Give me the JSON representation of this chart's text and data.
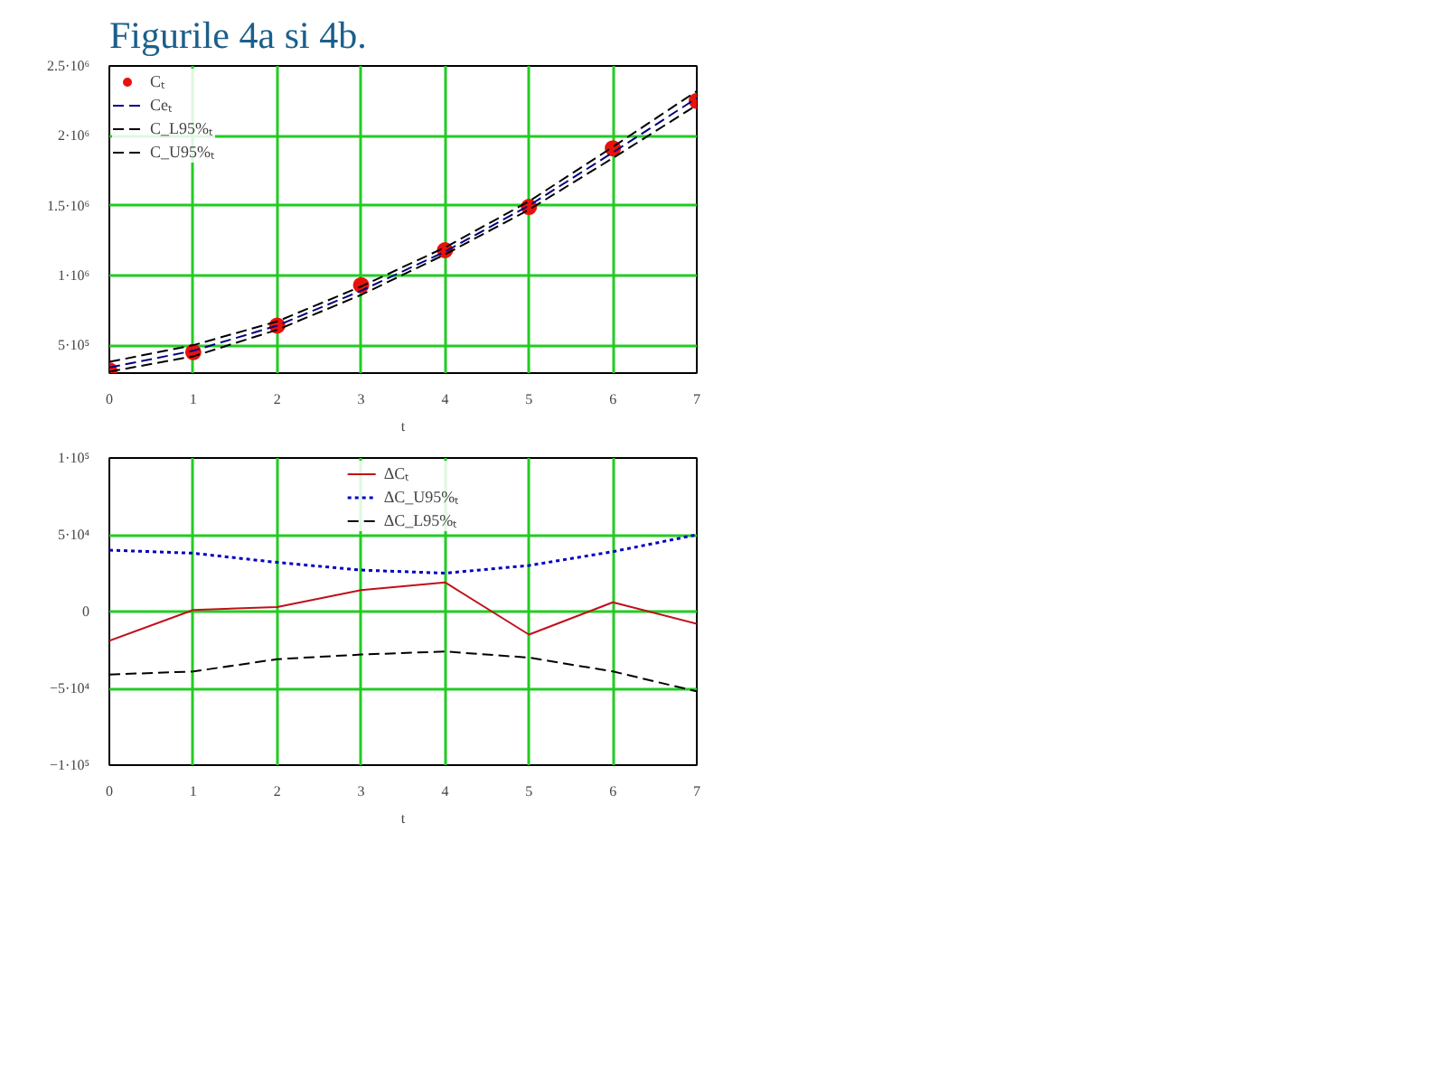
{
  "chart_data": [
    {
      "type": "line",
      "title": "Figurile 4a si 4b.",
      "xlabel": "t",
      "x": [
        0,
        1,
        2,
        3,
        4,
        5,
        6,
        7
      ],
      "xlim": [
        0,
        7
      ],
      "xticks": [
        0,
        1,
        2,
        3,
        4,
        5,
        6,
        7
      ],
      "ylim": [
        300000,
        2500000
      ],
      "yticks": [
        {
          "value": 500000,
          "label": "5·10⁵"
        },
        {
          "value": 1000000,
          "label": "1·10⁶"
        },
        {
          "value": 1500000,
          "label": "1.5·10⁶"
        },
        {
          "value": 2000000,
          "label": "2·10⁶"
        },
        {
          "value": 2500000,
          "label": "2.5·10⁶"
        }
      ],
      "grid": true,
      "legend": "top left",
      "series": [
        {
          "name": "Cₜ",
          "type": "scatter",
          "marker": "circle",
          "color": "#e8120c",
          "values": [
            320000,
            450000,
            640000,
            930000,
            1180000,
            1490000,
            1910000,
            2250000
          ]
        },
        {
          "name": "Ceₜ",
          "line_style": "dashed",
          "color": "#000080",
          "values": [
            340000,
            460000,
            640000,
            890000,
            1170000,
            1500000,
            1880000,
            2270000
          ]
        },
        {
          "name": "C_L95%ₜ",
          "line_style": "dashed",
          "color": "#000000",
          "values": [
            310000,
            420000,
            610000,
            860000,
            1150000,
            1470000,
            1840000,
            2220000
          ]
        },
        {
          "name": "C_U95%ₜ",
          "line_style": "dashed",
          "color": "#000000",
          "values": [
            380000,
            500000,
            670000,
            920000,
            1200000,
            1530000,
            1920000,
            2320000
          ]
        }
      ]
    },
    {
      "type": "line",
      "xlabel": "t",
      "x": [
        0,
        1,
        2,
        3,
        4,
        5,
        6,
        7
      ],
      "xlim": [
        0,
        7
      ],
      "xticks": [
        0,
        1,
        2,
        3,
        4,
        5,
        6,
        7
      ],
      "ylim": [
        -100000,
        100000
      ],
      "yticks": [
        {
          "value": -100000,
          "label": "−1·10⁵"
        },
        {
          "value": -50000,
          "label": "−5·10⁴"
        },
        {
          "value": 0,
          "label": "0"
        },
        {
          "value": 50000,
          "label": "5·10⁴"
        },
        {
          "value": 100000,
          "label": "1·10⁵"
        }
      ],
      "grid": true,
      "legend": "top",
      "series": [
        {
          "name": "ΔCₜ",
          "line_style": "solid",
          "color": "#c0101a",
          "values": [
            -19000,
            1000,
            3000,
            14000,
            19000,
            -15000,
            6000,
            -8000
          ]
        },
        {
          "name": "ΔC_U95%ₜ",
          "line_style": "dotted",
          "color": "#0000c0",
          "values": [
            40000,
            38000,
            32000,
            27000,
            25000,
            30000,
            39000,
            50000
          ]
        },
        {
          "name": "ΔC_L95%ₜ",
          "line_style": "dashed",
          "color": "#000000",
          "values": [
            -41000,
            -39000,
            -31000,
            -28000,
            -26000,
            -30000,
            -39000,
            -52000
          ]
        }
      ]
    }
  ]
}
